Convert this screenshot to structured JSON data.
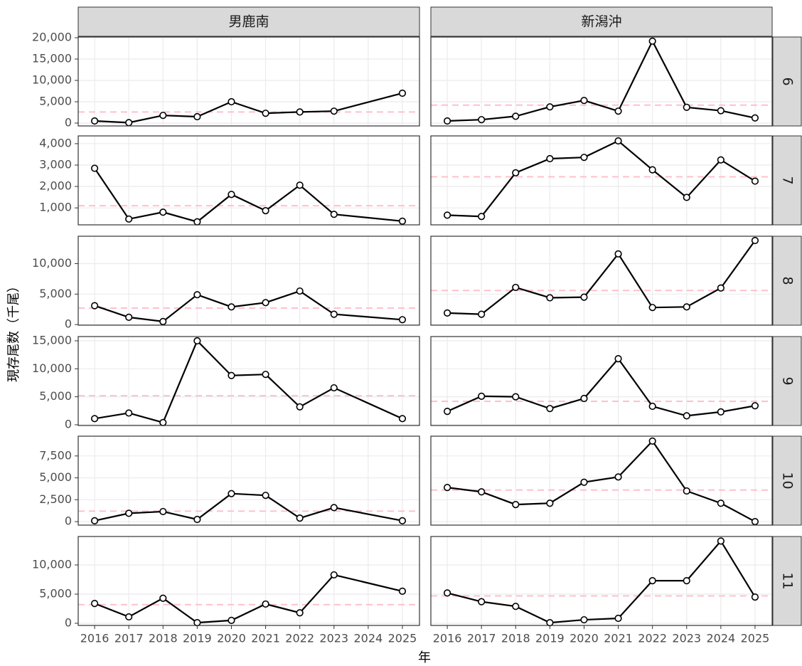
{
  "chart_data": {
    "type": "line",
    "columns": [
      "男鹿南",
      "新潟沖"
    ],
    "rows": [
      "6",
      "7",
      "8",
      "9",
      "10",
      "11"
    ],
    "x_label": "年",
    "y_label": "現存尾数（千尾）",
    "xlim": [
      2015.52,
      2025.5
    ],
    "xticks": [
      2016,
      2017,
      2018,
      2019,
      2020,
      2021,
      2022,
      2023,
      2024,
      2025
    ],
    "line_color": "#000000",
    "reference_color": "#ffc0cb",
    "grid": true,
    "panels": [
      {
        "ylim": [
          -670,
          20170
        ],
        "yticks": [
          0,
          {
            "value": 5000,
            "label": "5,000"
          },
          {
            "value": 10000,
            "label": "10,000"
          },
          {
            "value": 15000,
            "label": "15,000"
          },
          {
            "value": 20000,
            "label": "20,000"
          }
        ],
        "cells": [
          {
            "x": [
              2016,
              2017,
              2018,
              2019,
              2020,
              2021,
              2022,
              2023,
              2025
            ],
            "values": [
              500,
              100,
              1800,
              1500,
              5000,
              2300,
              2600,
              2800,
              7000
            ],
            "reference": 2600
          },
          {
            "x": [
              2016,
              2017,
              2018,
              2019,
              2020,
              2021,
              2022,
              2023,
              2024,
              2025
            ],
            "values": [
              500,
              800,
              1600,
              3800,
              5300,
              2800,
              19200,
              3700,
              2900,
              1200
            ],
            "reference": 4200
          }
        ]
      },
      {
        "ylim": [
          208,
          4363
        ],
        "yticks": [
          {
            "value": 1000,
            "label": "1,000"
          },
          {
            "value": 2000,
            "label": "2,000"
          },
          {
            "value": 3000,
            "label": "3,000"
          },
          {
            "value": 4000,
            "label": "4,000"
          }
        ],
        "cells": [
          {
            "x": [
              2016,
              2017,
              2018,
              2019,
              2020,
              2021,
              2022,
              2023,
              2025
            ],
            "values": [
              2850,
              480,
              800,
              350,
              1630,
              870,
              2060,
              700,
              380
            ],
            "reference": 1100
          },
          {
            "x": [
              2016,
              2017,
              2018,
              2019,
              2020,
              2021,
              2022,
              2023,
              2024,
              2025
            ],
            "values": [
              660,
              600,
              2640,
              3300,
              3360,
              4130,
              2780,
              1490,
              3240,
              2250
            ],
            "reference": 2450
          }
        ]
      },
      {
        "ylim": [
          -100,
          14500
        ],
        "yticks": [
          0,
          {
            "value": 5000,
            "label": "5,000"
          },
          {
            "value": 10000,
            "label": "10,000"
          }
        ],
        "cells": [
          {
            "x": [
              2016,
              2017,
              2018,
              2019,
              2020,
              2021,
              2022,
              2023,
              2025
            ],
            "values": [
              3100,
              1200,
              500,
              4900,
              2900,
              3600,
              5500,
              1700,
              800
            ],
            "reference": 2700
          },
          {
            "x": [
              2016,
              2017,
              2018,
              2019,
              2020,
              2021,
              2022,
              2023,
              2024,
              2025
            ],
            "values": [
              1900,
              1700,
              6100,
              4400,
              4500,
              11600,
              2800,
              2900,
              6000,
              13800
            ],
            "reference": 5600
          }
        ]
      },
      {
        "ylim": [
          -130,
          15760
        ],
        "yticks": [
          0,
          {
            "value": 5000,
            "label": "5,000"
          },
          {
            "value": 10000,
            "label": "10,000"
          },
          {
            "value": 15000,
            "label": "15,000"
          }
        ],
        "cells": [
          {
            "x": [
              2016,
              2017,
              2018,
              2019,
              2020,
              2021,
              2022,
              2023,
              2025
            ],
            "values": [
              1100,
              2100,
              400,
              15000,
              8800,
              9000,
              3200,
              6600,
              1100
            ],
            "reference": 5200
          },
          {
            "x": [
              2016,
              2017,
              2018,
              2019,
              2020,
              2021,
              2022,
              2023,
              2024,
              2025
            ],
            "values": [
              2400,
              5100,
              5000,
              2900,
              4700,
              11800,
              3300,
              1600,
              2300,
              3400
            ],
            "reference": 4200
          }
        ]
      },
      {
        "ylim": [
          -400,
          9760
        ],
        "yticks": [
          0,
          {
            "value": 2500,
            "label": "2,500"
          },
          {
            "value": 5000,
            "label": "5,000"
          },
          {
            "value": 7500,
            "label": "7,500"
          }
        ],
        "cells": [
          {
            "x": [
              2016,
              2017,
              2018,
              2019,
              2020,
              2021,
              2022,
              2023,
              2025
            ],
            "values": [
              100,
              950,
              1150,
              250,
              3200,
              3000,
              400,
              1600,
              100
            ],
            "reference": 1200
          },
          {
            "x": [
              2016,
              2017,
              2018,
              2019,
              2020,
              2021,
              2022,
              2023,
              2024,
              2025
            ],
            "values": [
              3900,
              3400,
              1950,
              2100,
              4500,
              5100,
              9200,
              3500,
              2100,
              0
            ],
            "reference": 3600
          }
        ]
      },
      {
        "ylim": [
          -370,
          14880
        ],
        "yticks": [
          0,
          {
            "value": 5000,
            "label": "5,000"
          },
          {
            "value": 10000,
            "label": "10,000"
          }
        ],
        "cells": [
          {
            "x": [
              2016,
              2017,
              2018,
              2019,
              2020,
              2021,
              2022,
              2023,
              2025
            ],
            "values": [
              3400,
              1100,
              4300,
              100,
              500,
              3300,
              1800,
              8300,
              5500
            ],
            "reference": 3200
          },
          {
            "x": [
              2016,
              2017,
              2018,
              2019,
              2020,
              2021,
              2022,
              2023,
              2024,
              2025
            ],
            "values": [
              5200,
              3700,
              2900,
              100,
              600,
              850,
              7300,
              7300,
              14100,
              4500
            ],
            "reference": 4700
          }
        ]
      }
    ]
  }
}
